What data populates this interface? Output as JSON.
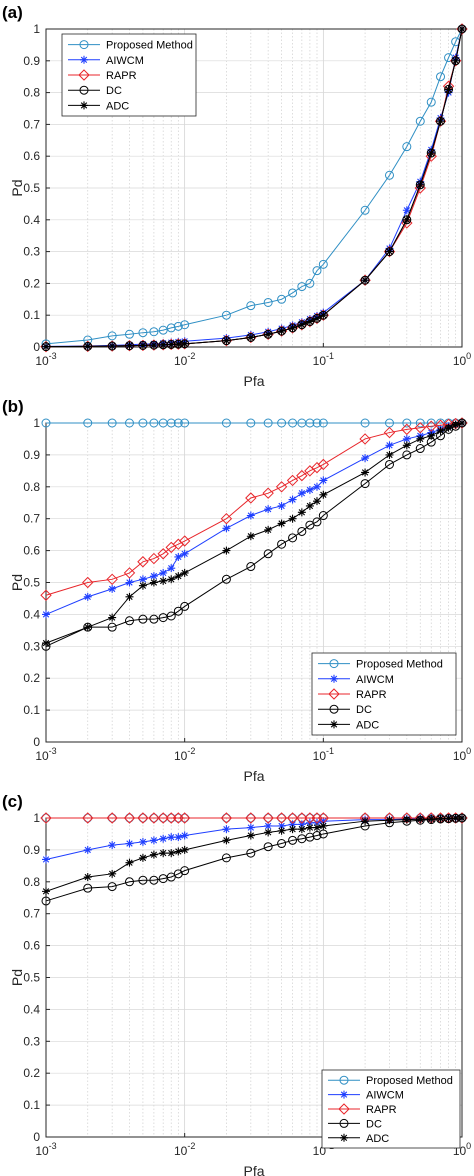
{
  "chart_data": [
    {
      "panel_label": "(a)",
      "type": "line",
      "xscale": "log",
      "xlim": [
        0.001,
        1
      ],
      "ylim": [
        0,
        1
      ],
      "xlabel": "Pfa",
      "ylabel": "Pd",
      "xticks": [
        0.001,
        0.01,
        0.1,
        1
      ],
      "xtick_labels": [
        [
          "10",
          "-3"
        ],
        [
          "10",
          "-2"
        ],
        [
          "10",
          "-1"
        ],
        [
          "10",
          "0"
        ]
      ],
      "yticks": [
        0,
        0.1,
        0.2,
        0.3,
        0.4,
        0.5,
        0.6,
        0.7,
        0.8,
        0.9,
        1
      ],
      "ytick_labels": [
        "0",
        "0.1",
        "0.2",
        "0.3",
        "0.4",
        "0.5",
        "0.6",
        "0.7",
        "0.8",
        "0.9",
        "1"
      ],
      "grid": true,
      "legend_position": "top-left",
      "x": [
        0.001,
        0.002,
        0.003,
        0.004,
        0.005,
        0.006,
        0.007,
        0.008,
        0.009,
        0.01,
        0.02,
        0.03,
        0.04,
        0.05,
        0.06,
        0.07,
        0.08,
        0.09,
        0.1,
        0.2,
        0.3,
        0.4,
        0.5,
        0.6,
        0.7,
        0.8,
        0.9,
        1.0
      ],
      "series": [
        {
          "name": "Proposed Method",
          "color": "#2f8fc4",
          "marker": "circle",
          "values": [
            0.01,
            0.022,
            0.035,
            0.04,
            0.045,
            0.048,
            0.053,
            0.06,
            0.065,
            0.07,
            0.1,
            0.13,
            0.14,
            0.15,
            0.17,
            0.19,
            0.2,
            0.24,
            0.26,
            0.43,
            0.54,
            0.63,
            0.71,
            0.77,
            0.85,
            0.91,
            0.96,
            1.0
          ]
        },
        {
          "name": "AIWCM",
          "color": "#1f3fff",
          "marker": "star",
          "values": [
            0.002,
            0.003,
            0.005,
            0.007,
            0.009,
            0.01,
            0.012,
            0.014,
            0.016,
            0.018,
            0.028,
            0.038,
            0.048,
            0.058,
            0.068,
            0.078,
            0.088,
            0.098,
            0.108,
            0.21,
            0.31,
            0.43,
            0.52,
            0.62,
            0.72,
            0.8,
            0.91,
            1.0
          ]
        },
        {
          "name": "RAPR",
          "color": "#e8262b",
          "marker": "diamond",
          "values": [
            0.001,
            0.002,
            0.003,
            0.004,
            0.005,
            0.006,
            0.007,
            0.008,
            0.009,
            0.01,
            0.02,
            0.03,
            0.04,
            0.05,
            0.06,
            0.07,
            0.08,
            0.09,
            0.1,
            0.21,
            0.3,
            0.39,
            0.5,
            0.6,
            0.71,
            0.82,
            0.9,
            1.0
          ]
        },
        {
          "name": "DC",
          "color": "#000000",
          "marker": "circle",
          "values": [
            0.001,
            0.002,
            0.003,
            0.004,
            0.005,
            0.006,
            0.007,
            0.008,
            0.009,
            0.01,
            0.02,
            0.03,
            0.04,
            0.05,
            0.06,
            0.07,
            0.08,
            0.09,
            0.1,
            0.21,
            0.3,
            0.4,
            0.51,
            0.61,
            0.71,
            0.81,
            0.9,
            1.0
          ]
        },
        {
          "name": "ADC",
          "color": "#000000",
          "marker": "star",
          "values": [
            0.001,
            0.002,
            0.003,
            0.004,
            0.005,
            0.006,
            0.007,
            0.008,
            0.009,
            0.01,
            0.02,
            0.03,
            0.04,
            0.05,
            0.06,
            0.07,
            0.08,
            0.09,
            0.1,
            0.21,
            0.3,
            0.4,
            0.51,
            0.61,
            0.71,
            0.81,
            0.9,
            1.0
          ]
        }
      ]
    },
    {
      "panel_label": "(b)",
      "type": "line",
      "xscale": "log",
      "xlim": [
        0.001,
        1
      ],
      "ylim": [
        0,
        1
      ],
      "xlabel": "Pfa",
      "ylabel": "Pd",
      "xticks": [
        0.001,
        0.01,
        0.1,
        1
      ],
      "xtick_labels": [
        [
          "10",
          "-3"
        ],
        [
          "10",
          "-2"
        ],
        [
          "10",
          "-1"
        ],
        [
          "10",
          "0"
        ]
      ],
      "yticks": [
        0,
        0.1,
        0.2,
        0.3,
        0.4,
        0.5,
        0.6,
        0.7,
        0.8,
        0.9,
        1
      ],
      "ytick_labels": [
        "0",
        "0.1",
        "0.2",
        "0.3",
        "0.4",
        "0.5",
        "0.6",
        "0.7",
        "0.8",
        "0.9",
        "1"
      ],
      "grid": true,
      "legend_position": "bottom-right",
      "x": [
        0.001,
        0.002,
        0.003,
        0.004,
        0.005,
        0.006,
        0.007,
        0.008,
        0.009,
        0.01,
        0.02,
        0.03,
        0.04,
        0.05,
        0.06,
        0.07,
        0.08,
        0.09,
        0.1,
        0.2,
        0.3,
        0.4,
        0.5,
        0.6,
        0.7,
        0.8,
        0.9,
        1.0
      ],
      "series": [
        {
          "name": "Proposed Method",
          "color": "#2f8fc4",
          "marker": "circle",
          "values": [
            1.0,
            1.0,
            1.0,
            1.0,
            1.0,
            1.0,
            1.0,
            1.0,
            1.0,
            1.0,
            1.0,
            1.0,
            1.0,
            1.0,
            1.0,
            1.0,
            1.0,
            1.0,
            1.0,
            1.0,
            1.0,
            1.0,
            1.0,
            1.0,
            1.0,
            1.0,
            1.0,
            1.0
          ]
        },
        {
          "name": "AIWCM",
          "color": "#1f3fff",
          "marker": "star",
          "values": [
            0.4,
            0.455,
            0.48,
            0.5,
            0.51,
            0.52,
            0.53,
            0.545,
            0.58,
            0.59,
            0.67,
            0.71,
            0.73,
            0.74,
            0.76,
            0.78,
            0.79,
            0.8,
            0.82,
            0.89,
            0.93,
            0.95,
            0.96,
            0.97,
            0.98,
            0.99,
            0.995,
            1.0
          ]
        },
        {
          "name": "RAPR",
          "color": "#e8262b",
          "marker": "diamond",
          "values": [
            0.46,
            0.5,
            0.51,
            0.53,
            0.565,
            0.575,
            0.59,
            0.61,
            0.62,
            0.63,
            0.7,
            0.765,
            0.78,
            0.8,
            0.82,
            0.835,
            0.85,
            0.86,
            0.87,
            0.95,
            0.97,
            0.98,
            0.985,
            0.99,
            0.993,
            0.996,
            0.998,
            1.0
          ]
        },
        {
          "name": "DC",
          "color": "#000000",
          "marker": "circle",
          "values": [
            0.3,
            0.36,
            0.36,
            0.38,
            0.385,
            0.385,
            0.39,
            0.395,
            0.41,
            0.425,
            0.51,
            0.55,
            0.59,
            0.62,
            0.64,
            0.66,
            0.68,
            0.69,
            0.71,
            0.81,
            0.87,
            0.9,
            0.92,
            0.94,
            0.96,
            0.98,
            0.99,
            1.0
          ]
        },
        {
          "name": "ADC",
          "color": "#000000",
          "marker": "star",
          "values": [
            0.31,
            0.36,
            0.39,
            0.455,
            0.49,
            0.5,
            0.505,
            0.51,
            0.52,
            0.53,
            0.6,
            0.645,
            0.665,
            0.685,
            0.7,
            0.72,
            0.74,
            0.755,
            0.775,
            0.845,
            0.9,
            0.93,
            0.95,
            0.96,
            0.975,
            0.985,
            0.995,
            1.0
          ]
        }
      ]
    },
    {
      "panel_label": "(c)",
      "type": "line",
      "xscale": "log",
      "xlim": [
        0.001,
        1
      ],
      "ylim": [
        0,
        1
      ],
      "xlabel": "Pfa",
      "ylabel": "Pd",
      "xticks": [
        0.001,
        0.01,
        0.1,
        1
      ],
      "xtick_labels": [
        [
          "10",
          "-3"
        ],
        [
          "10",
          "-2"
        ],
        [
          "10",
          "-1"
        ],
        [
          "10",
          "0"
        ]
      ],
      "yticks": [
        0,
        0.1,
        0.2,
        0.3,
        0.4,
        0.5,
        0.6,
        0.7,
        0.8,
        0.9,
        1
      ],
      "ytick_labels": [
        "0",
        "0.1",
        "0.2",
        "0.3",
        "0.4",
        "0.5",
        "0.6",
        "0.7",
        "0.8",
        "0.9",
        "1"
      ],
      "grid": true,
      "legend_position": "bottom-right",
      "x": [
        0.001,
        0.002,
        0.003,
        0.004,
        0.005,
        0.006,
        0.007,
        0.008,
        0.009,
        0.01,
        0.02,
        0.03,
        0.04,
        0.05,
        0.06,
        0.07,
        0.08,
        0.09,
        0.1,
        0.2,
        0.3,
        0.4,
        0.5,
        0.6,
        0.7,
        0.8,
        0.9,
        1.0
      ],
      "series": [
        {
          "name": "Proposed Method",
          "color": "#2f8fc4",
          "marker": "circle",
          "values": [
            1.0,
            1.0,
            1.0,
            1.0,
            1.0,
            1.0,
            1.0,
            1.0,
            1.0,
            1.0,
            1.0,
            1.0,
            1.0,
            1.0,
            1.0,
            1.0,
            1.0,
            1.0,
            1.0,
            1.0,
            1.0,
            1.0,
            1.0,
            1.0,
            1.0,
            1.0,
            1.0,
            1.0
          ]
        },
        {
          "name": "AIWCM",
          "color": "#1f3fff",
          "marker": "star",
          "values": [
            0.87,
            0.9,
            0.915,
            0.92,
            0.925,
            0.93,
            0.935,
            0.94,
            0.94,
            0.945,
            0.965,
            0.97,
            0.975,
            0.975,
            0.98,
            0.98,
            0.985,
            0.985,
            0.99,
            0.995,
            0.995,
            0.997,
            0.998,
            0.999,
            0.999,
            1.0,
            1.0,
            1.0
          ]
        },
        {
          "name": "RAPR",
          "color": "#e8262b",
          "marker": "diamond",
          "values": [
            1.0,
            1.0,
            1.0,
            1.0,
            1.0,
            1.0,
            1.0,
            1.0,
            1.0,
            1.0,
            1.0,
            1.0,
            1.0,
            1.0,
            1.0,
            1.0,
            1.0,
            1.0,
            1.0,
            1.0,
            1.0,
            1.0,
            1.0,
            1.0,
            1.0,
            1.0,
            1.0,
            1.0
          ]
        },
        {
          "name": "DC",
          "color": "#000000",
          "marker": "circle",
          "values": [
            0.74,
            0.78,
            0.785,
            0.8,
            0.805,
            0.805,
            0.81,
            0.815,
            0.825,
            0.835,
            0.875,
            0.89,
            0.91,
            0.92,
            0.93,
            0.935,
            0.94,
            0.945,
            0.95,
            0.975,
            0.985,
            0.99,
            0.993,
            0.995,
            0.997,
            0.998,
            0.999,
            1.0
          ]
        },
        {
          "name": "ADC",
          "color": "#000000",
          "marker": "star",
          "values": [
            0.77,
            0.815,
            0.825,
            0.86,
            0.875,
            0.885,
            0.89,
            0.89,
            0.895,
            0.9,
            0.93,
            0.945,
            0.955,
            0.96,
            0.965,
            0.965,
            0.97,
            0.97,
            0.975,
            0.99,
            0.993,
            0.995,
            0.996,
            0.997,
            0.998,
            0.999,
            1.0,
            1.0
          ]
        }
      ]
    }
  ]
}
